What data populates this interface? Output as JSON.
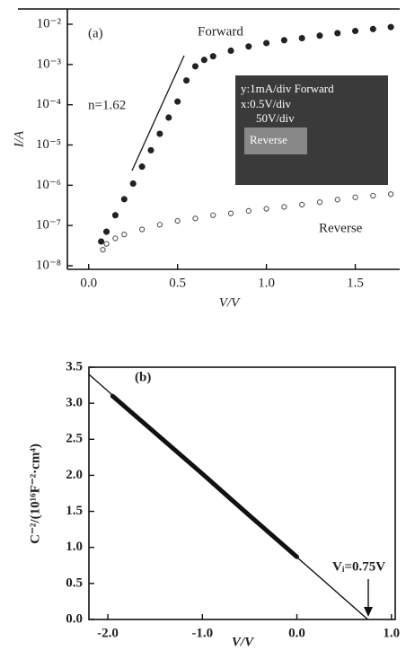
{
  "chart_data": [
    {
      "type": "scatter",
      "log_y": true,
      "xlabel": "V/V",
      "ylabel": "I/A",
      "panel_label": "(a)",
      "forward_label": "Forward",
      "reverse_label": "Reverse",
      "slope_label": "n=1.62",
      "inset": {
        "line1": "y:1mA/div Forward",
        "line2": "x:0.5V/div",
        "line3": "50V/div",
        "line4": "Reverse"
      },
      "xlim": [
        -0.12,
        1.75
      ],
      "ylim": [
        1e-08,
        0.01
      ],
      "xticks": [
        {
          "value": 0,
          "label": "0.0"
        },
        0.5,
        {
          "value": 1,
          "label": "1.0"
        },
        1.5
      ],
      "yticks": [
        {
          "value": 1e-08,
          "label": "10⁻⁸"
        },
        {
          "value": 1e-07,
          "label": "10⁻⁷"
        },
        {
          "value": 1e-06,
          "label": "10⁻⁶"
        },
        {
          "value": 1e-05,
          "label": "10⁻⁵"
        },
        {
          "value": 0.0001,
          "label": "10⁻⁴"
        },
        {
          "value": 0.001,
          "label": "10⁻³"
        },
        {
          "value": 0.01,
          "label": "10⁻²"
        }
      ],
      "series": [
        {
          "style": "dots",
          "color": "#222",
          "x": [
            0.07,
            0.1,
            0.15,
            0.2,
            0.25,
            0.3,
            0.35,
            0.4,
            0.45,
            0.5,
            0.55,
            0.6,
            0.65,
            0.7,
            0.8,
            0.9,
            1.0,
            1.1,
            1.2,
            1.3,
            1.4,
            1.5,
            1.6,
            1.7
          ],
          "values": [
            4e-08,
            7e-08,
            1.8e-07,
            4.5e-07,
            1.1e-06,
            2.9e-06,
            7.4e-06,
            1.9e-05,
            4.8e-05,
            0.00012,
            0.0004,
            0.0009,
            0.0013,
            0.0016,
            0.0022,
            0.0028,
            0.0034,
            0.004,
            0.0045,
            0.0052,
            0.006,
            0.0068,
            0.0076,
            0.0085
          ]
        },
        {
          "style": "circles",
          "color": "#555",
          "x": [
            0.08,
            0.1,
            0.15,
            0.2,
            0.3,
            0.4,
            0.5,
            0.6,
            0.7,
            0.8,
            0.9,
            1.0,
            1.1,
            1.2,
            1.3,
            1.4,
            1.5,
            1.6,
            1.7
          ],
          "values": [
            2.5e-08,
            3.5e-08,
            4.8e-08,
            6e-08,
            8e-08,
            1.05e-07,
            1.3e-07,
            1.5e-07,
            1.8e-07,
            2e-07,
            2.3e-07,
            2.6e-07,
            2.9e-07,
            3.3e-07,
            3.8e-07,
            4.4e-07,
            5e-07,
            5.5e-07,
            6e-07
          ]
        }
      ]
    },
    {
      "type": "line",
      "xlabel": "V/V",
      "ylabel": "C⁻²/(10¹⁶F⁻²·cm⁴)",
      "panel_label": "(b)",
      "vi_label": "Vᵢ=0.75V",
      "xlim": [
        -2.2,
        1.04
      ],
      "ylim": [
        0,
        3.5
      ],
      "xticks": [
        {
          "value": -2,
          "label": "-2.0"
        },
        {
          "value": -1,
          "label": "-1.0"
        },
        {
          "value": 0,
          "label": "0.0"
        },
        {
          "value": 1,
          "label": "1.0"
        }
      ],
      "yticks": [
        {
          "value": 0,
          "label": "0.0"
        },
        0.5,
        {
          "value": 1,
          "label": "1.0"
        },
        1.5,
        {
          "value": 2,
          "label": "2.0"
        },
        2.5,
        {
          "value": 3,
          "label": "3.0"
        },
        3.5
      ],
      "series": [
        {
          "style": "line",
          "color": "#111",
          "x": [
            -2.2,
            0.75
          ],
          "values": [
            3.4,
            0
          ]
        },
        {
          "style": "thick-line",
          "color": "#111",
          "x": [
            -1.95,
            -1.5,
            -1.0,
            -0.5,
            0.0
          ],
          "values": [
            3.1,
            2.59,
            2.02,
            1.44,
            0.87
          ]
        }
      ]
    }
  ]
}
